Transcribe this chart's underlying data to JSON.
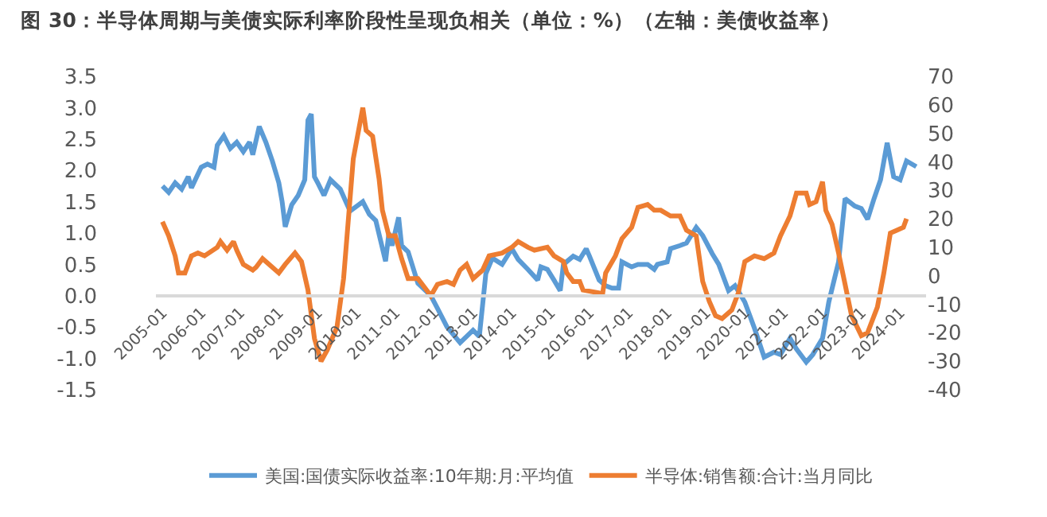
{
  "chart_data": {
    "type": "line",
    "title": "图 30：半导体周期与美债实际利率阶段性呈现负相关（单位：%）（左轴：美债收益率）",
    "series": [
      {
        "name": "美国:国债实际收益率:10年期:月:平均值",
        "color": "#5b9bd5",
        "axis": "y",
        "x": [
          "2005-01",
          "2005-03",
          "2005-05",
          "2005-07",
          "2005-09",
          "2005-10",
          "2006-01",
          "2006-03",
          "2006-05",
          "2006-06",
          "2006-08",
          "2006-10",
          "2006-12",
          "2007-02",
          "2007-04",
          "2007-05",
          "2007-07",
          "2007-09",
          "2007-11",
          "2008-01",
          "2008-02",
          "2008-03",
          "2008-05",
          "2008-07",
          "2008-09",
          "2008-10",
          "2008-11",
          "2008-12",
          "2009-01",
          "2009-03",
          "2009-05",
          "2009-08",
          "2009-11",
          "2010-03",
          "2010-05",
          "2010-07",
          "2010-10",
          "2010-11",
          "2010-12",
          "2011-02",
          "2011-03",
          "2011-05",
          "2011-08",
          "2011-09",
          "2011-12",
          "2012-02",
          "2012-05",
          "2012-09",
          "2013-01",
          "2013-03",
          "2013-05",
          "2013-07",
          "2013-10",
          "2014-01",
          "2014-03",
          "2014-06",
          "2014-09",
          "2014-10",
          "2014-12",
          "2015-02",
          "2015-04",
          "2015-05",
          "2015-08",
          "2015-10",
          "2015-12",
          "2016-01",
          "2016-04",
          "2016-06",
          "2016-08",
          "2016-10",
          "2016-11",
          "2017-02",
          "2017-04",
          "2017-07",
          "2017-09",
          "2017-10",
          "2018-01",
          "2018-02",
          "2018-05",
          "2018-07",
          "2018-10",
          "2018-12",
          "2019-03",
          "2019-05",
          "2019-08",
          "2019-10",
          "2020-01",
          "2020-04",
          "2020-07",
          "2020-10",
          "2020-12",
          "2021-03",
          "2021-05",
          "2021-08",
          "2021-10",
          "2022-01",
          "2022-03",
          "2022-06",
          "2022-08",
          "2022-11",
          "2023-01",
          "2023-03",
          "2023-05",
          "2023-07",
          "2023-09",
          "2023-11",
          "2024-01",
          "2024-03",
          "2024-06"
        ],
        "values": [
          1.75,
          1.65,
          1.8,
          1.7,
          1.9,
          1.72,
          2.05,
          2.1,
          2.05,
          2.4,
          2.55,
          2.35,
          2.45,
          2.3,
          2.45,
          2.25,
          2.7,
          2.45,
          2.15,
          1.8,
          1.5,
          1.1,
          1.45,
          1.6,
          1.85,
          2.8,
          2.9,
          1.9,
          1.8,
          1.6,
          1.85,
          1.7,
          1.35,
          1.5,
          1.3,
          1.2,
          0.55,
          1.0,
          0.8,
          1.25,
          0.8,
          0.7,
          0.2,
          0.15,
          0.0,
          -0.2,
          -0.5,
          -0.75,
          -0.55,
          -0.65,
          0.35,
          0.6,
          0.5,
          0.75,
          0.58,
          0.42,
          0.25,
          0.46,
          0.42,
          0.25,
          0.08,
          0.5,
          0.63,
          0.58,
          0.75,
          0.63,
          0.25,
          0.16,
          0.12,
          0.12,
          0.54,
          0.46,
          0.5,
          0.5,
          0.42,
          0.5,
          0.54,
          0.75,
          0.8,
          0.84,
          1.09,
          0.96,
          0.67,
          0.5,
          0.08,
          0.16,
          -0.1,
          -0.52,
          -0.98,
          -0.9,
          -0.94,
          -0.68,
          -0.85,
          -1.06,
          -0.94,
          -0.68,
          -0.1,
          0.54,
          1.55,
          1.43,
          1.39,
          1.22,
          1.55,
          1.85,
          2.44,
          1.9,
          1.85,
          2.15,
          2.06
        ]
      },
      {
        "name": "半导体:销售额:合计:当月同比",
        "color": "#ed7d31",
        "axis": "y2",
        "x": [
          "2005-01",
          "2005-03",
          "2005-05",
          "2005-06",
          "2005-08",
          "2005-10",
          "2005-12",
          "2006-02",
          "2006-06",
          "2006-07",
          "2006-09",
          "2006-11",
          "2006-12",
          "2007-02",
          "2007-05",
          "2007-06",
          "2007-08",
          "2007-11",
          "2008-01",
          "2008-03",
          "2008-06",
          "2008-08",
          "2008-10",
          "2008-12",
          "2009-02",
          "2009-04",
          "2009-07",
          "2009-09",
          "2009-12",
          "2010-03",
          "2010-04",
          "2010-06",
          "2010-08",
          "2010-09",
          "2010-11",
          "2011-01",
          "2011-03",
          "2011-05",
          "2011-08",
          "2011-12",
          "2012-02",
          "2012-05",
          "2012-07",
          "2012-09",
          "2012-11",
          "2013-01",
          "2013-04",
          "2013-06",
          "2013-10",
          "2014-01",
          "2014-03",
          "2014-06",
          "2014-08",
          "2014-12",
          "2015-02",
          "2015-05",
          "2015-06",
          "2015-08",
          "2015-10",
          "2015-11",
          "2016-04",
          "2016-05",
          "2016-06",
          "2016-09",
          "2016-11",
          "2017-02",
          "2017-04",
          "2017-07",
          "2017-09",
          "2017-11",
          "2018-02",
          "2018-05",
          "2018-07",
          "2018-10",
          "2018-12",
          "2019-02",
          "2019-04",
          "2019-06",
          "2019-09",
          "2019-11",
          "2020-01",
          "2020-04",
          "2020-07",
          "2020-10",
          "2020-12",
          "2021-03",
          "2021-05",
          "2021-08",
          "2021-09",
          "2021-11",
          "2022-01",
          "2022-02",
          "2022-04",
          "2022-06",
          "2022-08",
          "2022-10",
          "2023-01",
          "2023-03",
          "2023-06",
          "2023-08",
          "2023-10",
          "2023-12",
          "2024-02",
          "2024-03"
        ],
        "values": [
          19,
          14,
          7,
          1,
          1,
          7,
          8,
          7,
          10,
          12,
          9,
          12,
          9,
          4,
          2,
          3,
          6,
          3,
          1,
          4,
          8,
          5,
          -5,
          -22,
          -30,
          -26,
          -18,
          -1,
          41,
          59,
          51,
          49,
          34,
          23,
          14,
          14,
          6,
          -1,
          -1,
          -7,
          -3,
          -2,
          -3,
          2,
          4,
          -1,
          2,
          7,
          8,
          10,
          12,
          10,
          9,
          10,
          7,
          5,
          1,
          -2,
          -2,
          -5,
          -6,
          -7,
          1,
          7,
          13,
          17,
          24,
          25,
          23,
          23,
          21,
          21,
          16,
          14,
          -2,
          -9,
          -14,
          -15,
          -12,
          -6,
          5,
          7,
          6,
          8,
          14,
          21,
          29,
          29,
          25,
          26,
          33,
          23,
          18,
          8,
          -3,
          -14,
          -21,
          -20,
          -11,
          1,
          15,
          16,
          17,
          20
        ]
      }
    ],
    "xlim": [
      "2004-11",
      "2024-09"
    ],
    "xticks": [
      "2005-01",
      "2006-01",
      "2007-01",
      "2008-01",
      "2009-01",
      "2010-01",
      "2011-01",
      "2012-01",
      "2013-01",
      "2014-01",
      "2015-01",
      "2016-01",
      "2017-01",
      "2018-01",
      "2019-01",
      "2020-01",
      "2021-01",
      "2022-01",
      "2023-01",
      "2024-01"
    ],
    "ylim": [
      -1.5,
      3.5
    ],
    "yticks": [
      -1.5,
      {
        "value": -1,
        "label": "-1.0"
      },
      -0.5,
      {
        "value": 0,
        "label": "0.0"
      },
      0.5,
      {
        "value": 1,
        "label": "1.0"
      },
      1.5,
      {
        "value": 2,
        "label": "2.0"
      },
      2.5,
      {
        "value": 3,
        "label": "3.0"
      },
      3.5
    ],
    "y2lim": [
      -40,
      70
    ],
    "y2ticks": [
      -40,
      -30,
      -20,
      -10,
      0,
      10,
      20,
      30,
      40,
      50,
      60,
      70
    ],
    "legend": "bottom",
    "marker": "none",
    "line_style": "solid"
  }
}
